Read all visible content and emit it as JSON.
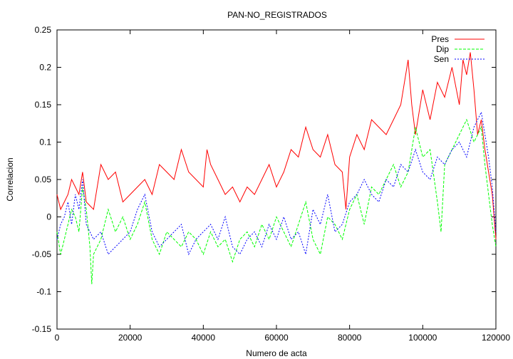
{
  "chart_data": {
    "type": "line",
    "title": "PAN-NO_REGISTRADOS",
    "xlabel": "Numero de acta",
    "ylabel": "Correlacion",
    "xlim": [
      0,
      120000
    ],
    "ylim": [
      -0.15,
      0.25
    ],
    "x_ticks": [
      0,
      20000,
      40000,
      60000,
      80000,
      100000,
      120000
    ],
    "x_tick_labels": [
      "0",
      "20000",
      "40000",
      "60000",
      "80000",
      "100000",
      "120000"
    ],
    "y_ticks": [
      -0.15,
      -0.1,
      -0.05,
      0,
      0.05,
      0.1,
      0.15,
      0.2,
      0.25
    ],
    "y_tick_labels": [
      "-0.15",
      "-0.1",
      "-0.05",
      "0",
      "0.05",
      "0.1",
      "0.15",
      "0.2",
      "0.25"
    ],
    "grid": false,
    "legend_position": "top-right",
    "series": [
      {
        "name": "Pres",
        "color": "#ff0000",
        "style": "solid",
        "x": [
          0,
          1000,
          2000,
          3000,
          4000,
          5000,
          6000,
          7000,
          8000,
          10000,
          12000,
          14000,
          16000,
          18000,
          20000,
          22000,
          24000,
          26000,
          28000,
          30000,
          32000,
          34000,
          36000,
          38000,
          40000,
          41000,
          42000,
          44000,
          46000,
          48000,
          50000,
          52000,
          54000,
          56000,
          58000,
          60000,
          62000,
          64000,
          66000,
          68000,
          70000,
          72000,
          74000,
          76000,
          78000,
          79000,
          80000,
          82000,
          84000,
          86000,
          88000,
          90000,
          92000,
          94000,
          96000,
          97000,
          98000,
          100000,
          102000,
          104000,
          106000,
          108000,
          110000,
          111000,
          112000,
          113000,
          114000,
          115000,
          116000,
          117000,
          118000,
          119000,
          120000
        ],
        "values": [
          0.03,
          0.01,
          0.02,
          0.03,
          0.05,
          0.04,
          0.03,
          0.06,
          0.02,
          0.01,
          0.07,
          0.05,
          0.06,
          0.02,
          0.03,
          0.04,
          0.05,
          0.03,
          0.07,
          0.06,
          0.05,
          0.09,
          0.06,
          0.05,
          0.04,
          0.09,
          0.07,
          0.05,
          0.03,
          0.04,
          0.02,
          0.04,
          0.03,
          0.05,
          0.07,
          0.04,
          0.06,
          0.09,
          0.08,
          0.12,
          0.09,
          0.08,
          0.11,
          0.07,
          0.06,
          0.01,
          0.08,
          0.11,
          0.09,
          0.13,
          0.12,
          0.11,
          0.13,
          0.15,
          0.21,
          0.15,
          0.11,
          0.17,
          0.13,
          0.18,
          0.16,
          0.2,
          0.15,
          0.21,
          0.19,
          0.22,
          0.17,
          0.11,
          0.13,
          0.09,
          0.06,
          0.03,
          -0.03
        ]
      },
      {
        "name": "Dip",
        "color": "#00ff00",
        "style": "dashed",
        "x": [
          0,
          1000,
          2000,
          3000,
          4000,
          5000,
          6000,
          7000,
          8000,
          9000,
          9500,
          10000,
          12000,
          14000,
          16000,
          18000,
          20000,
          22000,
          24000,
          26000,
          28000,
          30000,
          32000,
          34000,
          36000,
          38000,
          40000,
          42000,
          44000,
          46000,
          48000,
          50000,
          52000,
          54000,
          56000,
          58000,
          60000,
          62000,
          64000,
          66000,
          68000,
          70000,
          72000,
          74000,
          76000,
          78000,
          80000,
          82000,
          84000,
          86000,
          88000,
          90000,
          92000,
          94000,
          96000,
          98000,
          100000,
          102000,
          104000,
          105000,
          106000,
          108000,
          110000,
          112000,
          114000,
          116000,
          117000,
          118000,
          119000,
          120000
        ],
        "values": [
          -0.02,
          -0.05,
          -0.03,
          -0.01,
          0.01,
          0.0,
          -0.02,
          0.04,
          0.01,
          -0.04,
          -0.09,
          -0.05,
          -0.03,
          0.01,
          -0.02,
          0.0,
          -0.03,
          -0.01,
          0.02,
          -0.03,
          -0.05,
          -0.02,
          -0.03,
          -0.04,
          -0.02,
          -0.03,
          -0.05,
          -0.02,
          -0.04,
          -0.03,
          -0.06,
          -0.03,
          -0.02,
          -0.04,
          -0.01,
          -0.03,
          0.0,
          -0.02,
          -0.04,
          -0.01,
          0.02,
          -0.03,
          -0.05,
          0.0,
          -0.01,
          -0.03,
          0.01,
          0.03,
          -0.01,
          0.04,
          0.03,
          0.05,
          0.07,
          0.04,
          0.06,
          0.12,
          0.08,
          0.09,
          0.02,
          -0.02,
          0.07,
          0.09,
          0.11,
          0.13,
          0.1,
          0.12,
          0.07,
          0.03,
          -0.01,
          -0.04
        ]
      },
      {
        "name": "Sen",
        "color": "#0000ff",
        "style": "dotted",
        "x": [
          0,
          1000,
          2000,
          3000,
          4000,
          5000,
          6000,
          7000,
          8000,
          10000,
          12000,
          14000,
          16000,
          18000,
          20000,
          22000,
          24000,
          26000,
          28000,
          30000,
          32000,
          34000,
          36000,
          38000,
          40000,
          42000,
          44000,
          46000,
          48000,
          50000,
          52000,
          54000,
          56000,
          58000,
          60000,
          62000,
          64000,
          66000,
          68000,
          70000,
          72000,
          74000,
          76000,
          78000,
          80000,
          82000,
          84000,
          86000,
          88000,
          90000,
          92000,
          94000,
          96000,
          98000,
          100000,
          102000,
          104000,
          106000,
          108000,
          110000,
          112000,
          114000,
          116000,
          117000,
          118000,
          119000,
          120000
        ],
        "values": [
          -0.03,
          -0.01,
          0.0,
          0.02,
          -0.01,
          0.03,
          0.01,
          0.05,
          -0.01,
          -0.03,
          -0.02,
          -0.05,
          -0.04,
          -0.03,
          -0.02,
          0.01,
          0.03,
          -0.02,
          -0.04,
          -0.03,
          -0.02,
          -0.01,
          -0.05,
          -0.03,
          -0.02,
          -0.01,
          -0.03,
          0.0,
          -0.04,
          -0.05,
          -0.03,
          -0.02,
          -0.04,
          -0.01,
          -0.03,
          0.0,
          -0.03,
          -0.02,
          -0.05,
          0.01,
          -0.01,
          0.03,
          -0.02,
          -0.01,
          0.02,
          0.03,
          0.05,
          0.03,
          0.02,
          0.05,
          0.04,
          0.07,
          0.06,
          0.09,
          0.06,
          0.05,
          0.08,
          0.07,
          0.09,
          0.1,
          0.08,
          0.12,
          0.14,
          0.11,
          0.08,
          0.04,
          -0.02
        ]
      }
    ]
  }
}
